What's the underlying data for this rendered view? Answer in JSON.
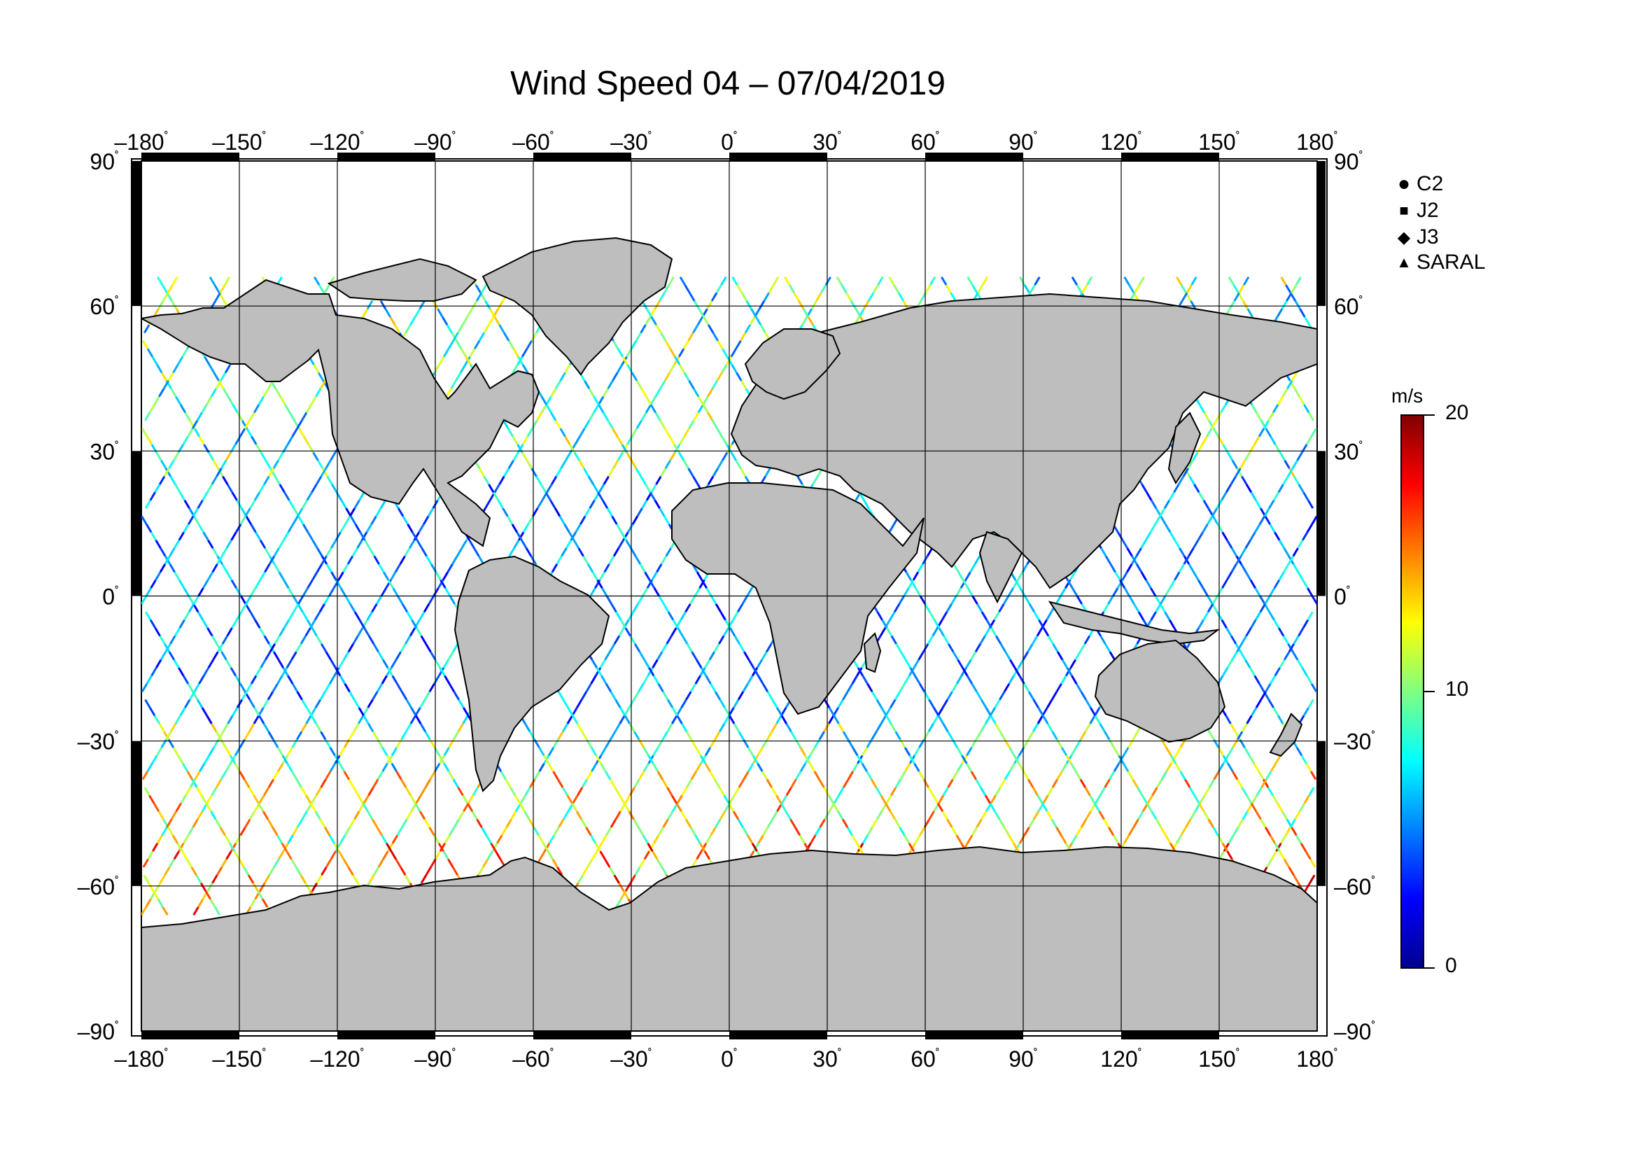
{
  "title": "Wind Speed 04 – 07/04/2019",
  "axes": {
    "lon_ticks": [
      "–180",
      "–150",
      "–120",
      "–90",
      "–60",
      "–30",
      "0",
      "30",
      "60",
      "90",
      "120",
      "150",
      "180"
    ],
    "lat_ticks": [
      "90",
      "60",
      "30",
      "0",
      "–30",
      "–60",
      "–90"
    ],
    "degree_symbol": "˚"
  },
  "legend": {
    "items": [
      {
        "symbol": "circle",
        "label": "C2"
      },
      {
        "symbol": "square",
        "label": "J2"
      },
      {
        "symbol": "diamond",
        "label": "J3"
      },
      {
        "symbol": "triangle",
        "label": "SARAL"
      }
    ]
  },
  "colorbar": {
    "unit": "m/s",
    "min_label": "0",
    "mid_label": "10",
    "max_label": "20",
    "colors": [
      "#00008f",
      "#0000ff",
      "#0080ff",
      "#00ffff",
      "#80ff80",
      "#ffff00",
      "#ff8000",
      "#ff0000",
      "#800000"
    ]
  },
  "chart_data": {
    "type": "scatter",
    "title": "Wind Speed 04 – 07/04/2019",
    "xlim": [
      -180,
      180
    ],
    "ylim": [
      -90,
      90
    ],
    "value_range": [
      0,
      20
    ],
    "value_unit": "m/s",
    "series": [
      {
        "name": "C2"
      },
      {
        "name": "J2"
      },
      {
        "name": "J3"
      },
      {
        "name": "SARAL"
      }
    ]
  },
  "colors": {
    "land": "#bebebe",
    "coast": "#000000",
    "grid": "#000000"
  }
}
